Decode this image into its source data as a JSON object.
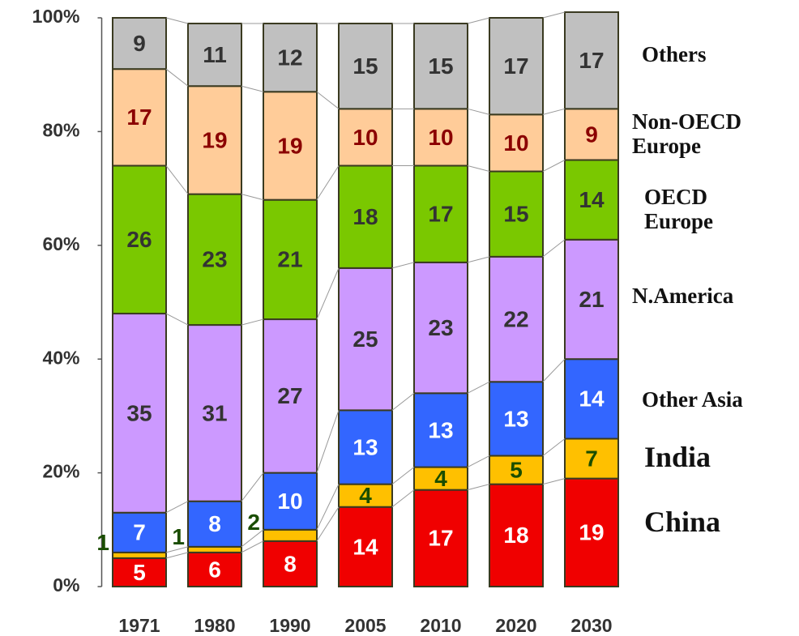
{
  "chart_data": {
    "type": "stacked-bar",
    "categories": [
      "1971",
      "1980",
      "1990",
      "2005",
      "2010",
      "2020",
      "2030"
    ],
    "series": [
      {
        "name": "China",
        "color": "#f00000",
        "values": [
          5,
          6,
          8,
          14,
          17,
          18,
          19
        ]
      },
      {
        "name": "India",
        "color": "#ffc000",
        "values": [
          1,
          1,
          2,
          4,
          4,
          5,
          7
        ]
      },
      {
        "name": "Other Asia",
        "color": "#3366ff",
        "values": [
          7,
          8,
          10,
          13,
          13,
          13,
          14
        ]
      },
      {
        "name": "N.America",
        "color": "#cc99ff",
        "values": [
          35,
          31,
          27,
          25,
          23,
          22,
          21
        ]
      },
      {
        "name": "OECD Europe",
        "color": "#7ac800",
        "values": [
          26,
          23,
          21,
          18,
          17,
          15,
          14
        ]
      },
      {
        "name": "Non-OECD Europe",
        "color": "#ffcc99",
        "values": [
          17,
          19,
          19,
          10,
          10,
          10,
          9
        ]
      },
      {
        "name": "Others",
        "color": "#c0c0c0",
        "values": [
          9,
          11,
          12,
          15,
          15,
          17,
          17
        ]
      }
    ],
    "ylim": [
      0,
      100
    ],
    "yticks": [
      {
        "value": 0,
        "label": "0%"
      },
      {
        "value": 20,
        "label": "20%"
      },
      {
        "value": 40,
        "label": "40%"
      },
      {
        "value": 60,
        "label": "60%"
      },
      {
        "value": 80,
        "label": "80%"
      },
      {
        "value": 100,
        "label": "100%"
      }
    ]
  }
}
